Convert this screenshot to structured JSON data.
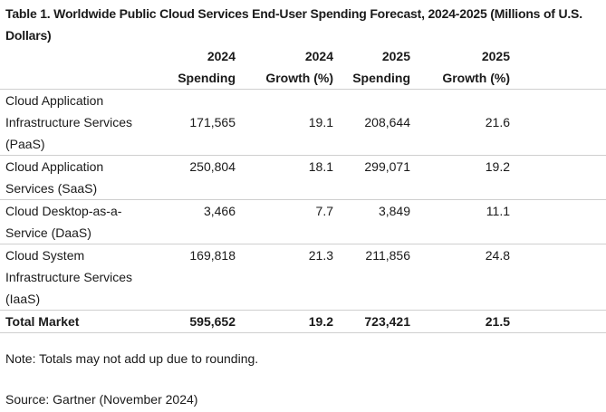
{
  "table": {
    "caption": "Table 1. Worldwide Public Cloud Services End-User Spending Forecast, 2024-2025 (Millions of U.S. Dollars)",
    "headers": [
      {
        "line1": "",
        "line2": ""
      },
      {
        "line1": "2024",
        "line2": "Spending"
      },
      {
        "line1": "2024",
        "line2": "Growth (%)"
      },
      {
        "line1": "2025",
        "line2": "Spending"
      },
      {
        "line1": "2025",
        "line2": "Growth (%)"
      }
    ],
    "rows": [
      {
        "label": "Cloud Application Infrastructure Services (PaaS)",
        "spending_2024": "171,565",
        "growth_2024": "19.1",
        "spending_2025": "208,644",
        "growth_2025": "21.6"
      },
      {
        "label": "Cloud Application Services (SaaS)",
        "spending_2024": "250,804",
        "growth_2024": "18.1",
        "spending_2025": "299,071",
        "growth_2025": "19.2"
      },
      {
        "label": "Cloud Desktop-as-a-Service (DaaS)",
        "spending_2024": "3,466",
        "growth_2024": "7.7",
        "spending_2025": "3,849",
        "growth_2025": "11.1"
      },
      {
        "label": "Cloud System Infrastructure Services (IaaS)",
        "spending_2024": "169,818",
        "growth_2024": "21.3",
        "spending_2025": "211,856",
        "growth_2025": "24.8"
      }
    ],
    "total": {
      "label": "Total Market",
      "spending_2024": "595,652",
      "growth_2024": "19.2",
      "spending_2025": "723,421",
      "growth_2025": "21.5"
    }
  },
  "note": "Note: Totals may not add up due to rounding.",
  "source": "Source: Gartner (November 2024)"
}
